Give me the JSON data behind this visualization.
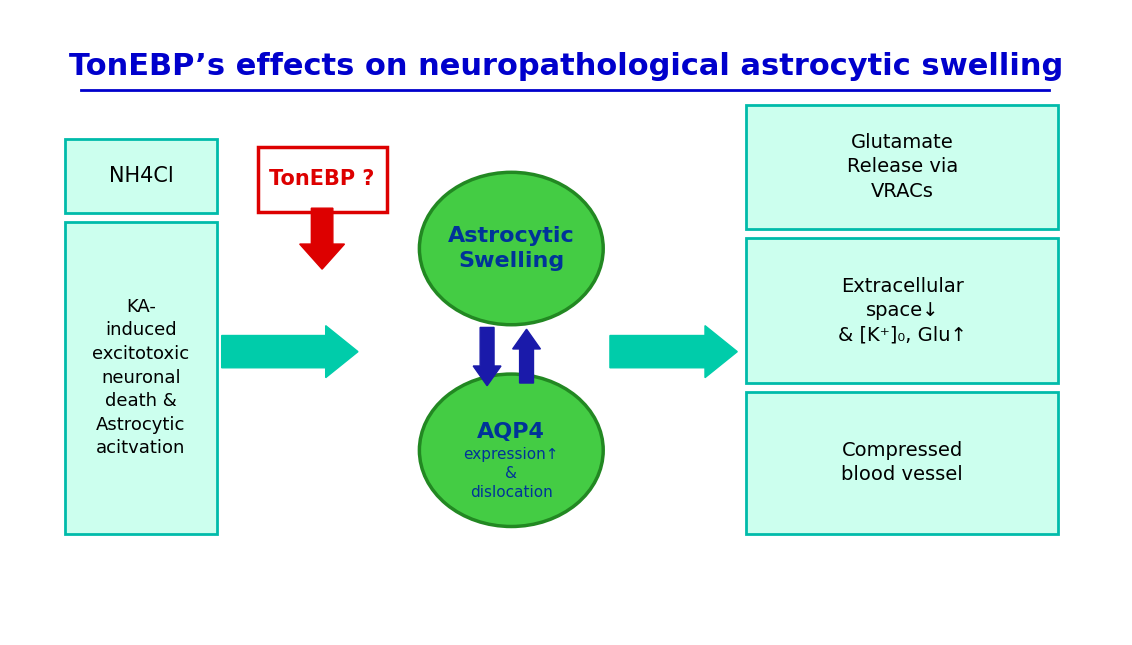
{
  "title": "TonEBP’s effects on neuropathological astrocytic swelling",
  "title_color": "#0000CC",
  "title_fontsize": 22,
  "bg_color": "#FFFFFF",
  "box_fill": "#CCFFEE",
  "box_edge": "#00BBAA",
  "ellipse_fill": "#44CC44",
  "ellipse_edge": "#228822",
  "arrow_cyan": "#00CCAA",
  "arrow_blue_dark": "#1a1aaa",
  "arrow_red": "#DD0000",
  "tonebp_box_edge": "#DD0000",
  "tonebp_text_color": "#DD0000",
  "nh4cl_text": "NH4Cl",
  "ka_text": "KA-\ninduced\nexcitotoxic\nneuronal\ndeath &\nAstrocytic\nacitvation",
  "tonebp_label": "TonEBP ?",
  "astrocytic_label": "Astrocytic\nSwelling",
  "aqp4_label": "AQP4",
  "aqp4_sub": "expression↑\n&\ndislocation",
  "right_box1": "Glutamate\nRelease via\nVRACs",
  "right_box2": "Extracellular\nspace↓\n& [K⁺]₀, Glu↑",
  "right_box3": "Compressed\nblood vessel"
}
